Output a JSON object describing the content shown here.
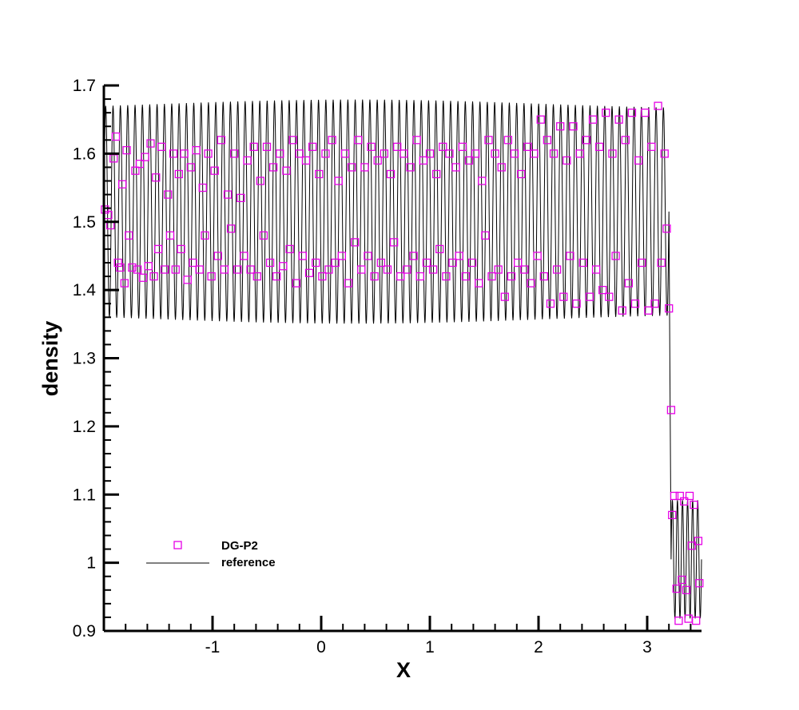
{
  "chart_data": {
    "type": "scatter",
    "title": "",
    "xlabel": "X",
    "ylabel": "density",
    "xlim": [
      -2.0,
      3.5
    ],
    "ylim": [
      0.9,
      1.7
    ],
    "x_major_ticks": [
      -1,
      0,
      1,
      2,
      3
    ],
    "x_tick_labels": [
      "-1",
      "0",
      "1",
      "2",
      "3"
    ],
    "y_major_ticks": [
      0.9,
      1.0,
      1.1,
      1.2,
      1.3,
      1.4,
      1.5,
      1.6,
      1.7
    ],
    "y_tick_labels": [
      "0.9",
      "1",
      "1.1",
      "1.2",
      "1.3",
      "1.4",
      "1.5",
      "1.6",
      "1.7"
    ],
    "grid": false,
    "legend_position": "bottom-left",
    "legend_entries": [
      "DG-P2",
      "reference"
    ],
    "series": [
      {
        "name": "DG-P2",
        "marker": "open-square",
        "color": "#e600e6",
        "points": [
          [
            -1.99,
            1.518
          ],
          [
            -1.96,
            1.51
          ],
          [
            -1.94,
            1.495
          ],
          [
            -1.91,
            1.593
          ],
          [
            -1.89,
            1.625
          ],
          [
            -1.87,
            1.44
          ],
          [
            -1.85,
            1.433
          ],
          [
            -1.83,
            1.555
          ],
          [
            -1.81,
            1.41
          ],
          [
            -1.79,
            1.605
          ],
          [
            -1.77,
            1.48
          ],
          [
            -1.74,
            1.433
          ],
          [
            -1.71,
            1.575
          ],
          [
            -1.69,
            1.43
          ],
          [
            -1.67,
            1.585
          ],
          [
            -1.64,
            1.418
          ],
          [
            -1.62,
            1.595
          ],
          [
            -1.59,
            1.435
          ],
          [
            -1.57,
            1.615
          ],
          [
            -1.54,
            1.42
          ],
          [
            -1.52,
            1.565
          ],
          [
            -1.5,
            1.46
          ],
          [
            -1.47,
            1.61
          ],
          [
            -1.44,
            1.43
          ],
          [
            -1.41,
            1.54
          ],
          [
            -1.39,
            1.48
          ],
          [
            -1.36,
            1.6
          ],
          [
            -1.34,
            1.43
          ],
          [
            -1.31,
            1.57
          ],
          [
            -1.29,
            1.46
          ],
          [
            -1.26,
            1.6
          ],
          [
            -1.23,
            1.415
          ],
          [
            -1.2,
            1.58
          ],
          [
            -1.18,
            1.44
          ],
          [
            -1.15,
            1.605
          ],
          [
            -1.12,
            1.43
          ],
          [
            -1.09,
            1.55
          ],
          [
            -1.07,
            1.48
          ],
          [
            -1.04,
            1.6
          ],
          [
            -1.01,
            1.42
          ],
          [
            -0.98,
            1.575
          ],
          [
            -0.95,
            1.45
          ],
          [
            -0.92,
            1.62
          ],
          [
            -0.89,
            1.43
          ],
          [
            -0.86,
            1.54
          ],
          [
            -0.83,
            1.49
          ],
          [
            -0.8,
            1.6
          ],
          [
            -0.77,
            1.43
          ],
          [
            -0.74,
            1.535
          ],
          [
            -0.71,
            1.45
          ],
          [
            -0.68,
            1.59
          ],
          [
            -0.65,
            1.43
          ],
          [
            -0.62,
            1.61
          ],
          [
            -0.59,
            1.42
          ],
          [
            -0.56,
            1.56
          ],
          [
            -0.53,
            1.48
          ],
          [
            -0.5,
            1.61
          ],
          [
            -0.47,
            1.44
          ],
          [
            -0.44,
            1.58
          ],
          [
            -0.41,
            1.42
          ],
          [
            -0.38,
            1.6
          ],
          [
            -0.35,
            1.435
          ],
          [
            -0.32,
            1.575
          ],
          [
            -0.29,
            1.46
          ],
          [
            -0.26,
            1.62
          ],
          [
            -0.23,
            1.41
          ],
          [
            -0.2,
            1.6
          ],
          [
            -0.17,
            1.45
          ],
          [
            -0.14,
            1.59
          ],
          [
            -0.11,
            1.425
          ],
          [
            -0.08,
            1.61
          ],
          [
            -0.05,
            1.44
          ],
          [
            -0.02,
            1.57
          ],
          [
            0.01,
            1.42
          ],
          [
            0.04,
            1.6
          ],
          [
            0.07,
            1.43
          ],
          [
            0.1,
            1.62
          ],
          [
            0.13,
            1.44
          ],
          [
            0.16,
            1.56
          ],
          [
            0.19,
            1.45
          ],
          [
            0.22,
            1.6
          ],
          [
            0.25,
            1.41
          ],
          [
            0.28,
            1.58
          ],
          [
            0.31,
            1.47
          ],
          [
            0.34,
            1.62
          ],
          [
            0.37,
            1.43
          ],
          [
            0.4,
            1.58
          ],
          [
            0.43,
            1.45
          ],
          [
            0.46,
            1.61
          ],
          [
            0.49,
            1.42
          ],
          [
            0.52,
            1.59
          ],
          [
            0.55,
            1.44
          ],
          [
            0.58,
            1.6
          ],
          [
            0.61,
            1.43
          ],
          [
            0.64,
            1.57
          ],
          [
            0.67,
            1.47
          ],
          [
            0.7,
            1.61
          ],
          [
            0.73,
            1.42
          ],
          [
            0.76,
            1.6
          ],
          [
            0.79,
            1.43
          ],
          [
            0.82,
            1.58
          ],
          [
            0.85,
            1.45
          ],
          [
            0.88,
            1.62
          ],
          [
            0.91,
            1.42
          ],
          [
            0.94,
            1.59
          ],
          [
            0.97,
            1.44
          ],
          [
            1.0,
            1.6
          ],
          [
            1.03,
            1.43
          ],
          [
            1.06,
            1.57
          ],
          [
            1.09,
            1.46
          ],
          [
            1.12,
            1.61
          ],
          [
            1.15,
            1.42
          ],
          [
            1.18,
            1.6
          ],
          [
            1.21,
            1.44
          ],
          [
            1.24,
            1.58
          ],
          [
            1.27,
            1.45
          ],
          [
            1.3,
            1.61
          ],
          [
            1.33,
            1.42
          ],
          [
            1.36,
            1.59
          ],
          [
            1.39,
            1.44
          ],
          [
            1.42,
            1.6
          ],
          [
            1.45,
            1.41
          ],
          [
            1.48,
            1.56
          ],
          [
            1.51,
            1.48
          ],
          [
            1.54,
            1.62
          ],
          [
            1.57,
            1.42
          ],
          [
            1.6,
            1.6
          ],
          [
            1.63,
            1.43
          ],
          [
            1.66,
            1.58
          ],
          [
            1.69,
            1.39
          ],
          [
            1.72,
            1.62
          ],
          [
            1.75,
            1.42
          ],
          [
            1.78,
            1.6
          ],
          [
            1.81,
            1.44
          ],
          [
            1.84,
            1.57
          ],
          [
            1.87,
            1.43
          ],
          [
            1.9,
            1.61
          ],
          [
            1.93,
            1.41
          ],
          [
            1.96,
            1.6
          ],
          [
            1.99,
            1.45
          ],
          [
            2.02,
            1.65
          ],
          [
            2.05,
            1.42
          ],
          [
            2.08,
            1.62
          ],
          [
            2.11,
            1.38
          ],
          [
            2.14,
            1.6
          ],
          [
            2.17,
            1.43
          ],
          [
            2.2,
            1.64
          ],
          [
            2.23,
            1.39
          ],
          [
            2.26,
            1.59
          ],
          [
            2.29,
            1.45
          ],
          [
            2.32,
            1.64
          ],
          [
            2.35,
            1.38
          ],
          [
            2.38,
            1.6
          ],
          [
            2.41,
            1.44
          ],
          [
            2.44,
            1.62
          ],
          [
            2.47,
            1.39
          ],
          [
            2.5,
            1.65
          ],
          [
            2.53,
            1.43
          ],
          [
            2.56,
            1.61
          ],
          [
            2.59,
            1.4
          ],
          [
            2.62,
            1.66
          ],
          [
            2.65,
            1.39
          ],
          [
            2.68,
            1.6
          ],
          [
            2.71,
            1.45
          ],
          [
            2.74,
            1.65
          ],
          [
            2.77,
            1.37
          ],
          [
            2.8,
            1.62
          ],
          [
            2.83,
            1.41
          ],
          [
            2.86,
            1.66
          ],
          [
            2.89,
            1.38
          ],
          [
            2.92,
            1.59
          ],
          [
            2.95,
            1.44
          ],
          [
            2.98,
            1.66
          ],
          [
            3.01,
            1.37
          ],
          [
            3.04,
            1.61
          ],
          [
            3.07,
            1.38
          ],
          [
            3.1,
            1.67
          ],
          [
            3.13,
            1.44
          ],
          [
            3.16,
            1.6
          ],
          [
            3.18,
            1.49
          ],
          [
            3.2,
            1.373
          ],
          [
            3.22,
            1.224
          ],
          [
            3.23,
            1.07
          ],
          [
            3.25,
            1.098
          ],
          [
            3.27,
            0.962
          ],
          [
            3.29,
            0.915
          ],
          [
            3.3,
            1.098
          ],
          [
            3.32,
            0.975
          ],
          [
            3.34,
            1.09
          ],
          [
            3.36,
            0.96
          ],
          [
            3.38,
            0.918
          ],
          [
            3.39,
            1.098
          ],
          [
            3.41,
            1.025
          ],
          [
            3.43,
            1.085
          ],
          [
            3.45,
            0.915
          ],
          [
            3.47,
            1.032
          ],
          [
            3.48,
            0.97
          ]
        ]
      },
      {
        "name": "reference",
        "style": "line",
        "color": "#000000",
        "pre_shock": {
          "x_range": [
            -2.0,
            3.2
          ],
          "peaks": 77,
          "mean": 1.515,
          "amplitude": 0.158
        },
        "post_shock": {
          "x_range": [
            3.22,
            3.5
          ],
          "peaks": 6,
          "mean": 1.005,
          "amplitude": 0.09
        }
      }
    ]
  }
}
